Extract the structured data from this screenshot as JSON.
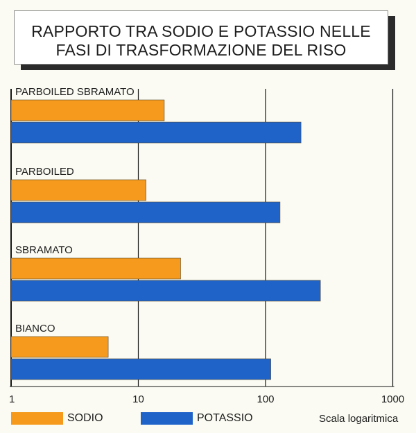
{
  "title": {
    "line1": "RAPPORTO TRA SODIO E POTASSIO NELLE",
    "line2": "FASI DI TRASFORMAZIONE DEL RISO"
  },
  "chart_data": {
    "type": "bar",
    "orientation": "horizontal",
    "x_scale": "log",
    "xlim": [
      1,
      1000
    ],
    "x_ticks": [
      "1",
      "10",
      "100",
      "1000"
    ],
    "grid": true,
    "categories": [
      "PARBOILED SBRAMATO",
      "PARBOILED",
      "SBRAMATO",
      "BIANCO"
    ],
    "series": [
      {
        "name": "SODIO",
        "values": [
          16,
          11.5,
          21.5,
          5.8
        ]
      },
      {
        "name": "POTASSIO",
        "values": [
          190,
          130,
          270,
          110
        ]
      }
    ],
    "legend": "bottom",
    "note": "Scala logaritmica"
  },
  "colors": {
    "SODIO": "#f59a1c",
    "POTASSIO": "#1f63c9",
    "grid": "#151515",
    "bar_edge": "#5a4a30"
  }
}
